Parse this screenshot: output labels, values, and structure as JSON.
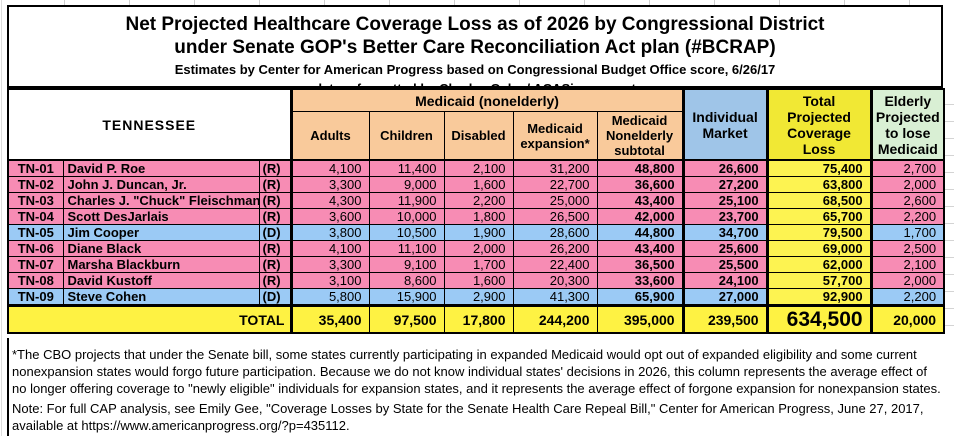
{
  "title": {
    "line1": "Net Projected Healthcare Coverage Loss as of 2026 by Congressional District",
    "line2": "under Senate GOP's Better Care Reconciliation Act plan (#BCRAP)",
    "line3": "Estimates by Center for American Progress based on Congressional Budget Office score, 6/26/17",
    "line4": "data reformatted by Charles Gaba / ACASignups.net"
  },
  "table": {
    "state": "TENNESSEE",
    "group_header": "Medicaid (nonelderly)",
    "columns": [
      "Adults",
      "Children",
      "Disabled",
      "Medicaid expansion*",
      "Medicaid Nonelderly subtotal",
      "Individual Market",
      "Total Projected Coverage Loss",
      "Elderly Projected to lose Medicaid"
    ],
    "rows": [
      {
        "district": "TN-01",
        "name": "David P. Roe",
        "party": "(R)",
        "values": [
          "4,100",
          "11,400",
          "2,100",
          "31,200",
          "48,800",
          "26,600",
          "75,400",
          "2,700"
        ]
      },
      {
        "district": "TN-02",
        "name": "John J. Duncan, Jr.",
        "party": "(R)",
        "values": [
          "3,300",
          "9,000",
          "1,600",
          "22,700",
          "36,600",
          "27,200",
          "63,800",
          "2,000"
        ]
      },
      {
        "district": "TN-03",
        "name": "Charles J. \"Chuck\" Fleischmann",
        "party": "(R)",
        "values": [
          "4,300",
          "11,900",
          "2,200",
          "25,000",
          "43,400",
          "25,100",
          "68,500",
          "2,600"
        ]
      },
      {
        "district": "TN-04",
        "name": "Scott DesJarlais",
        "party": "(R)",
        "values": [
          "3,600",
          "10,000",
          "1,800",
          "26,500",
          "42,000",
          "23,700",
          "65,700",
          "2,200"
        ]
      },
      {
        "district": "TN-05",
        "name": "Jim Cooper",
        "party": "(D)",
        "values": [
          "3,800",
          "10,500",
          "1,900",
          "28,600",
          "44,800",
          "34,700",
          "79,500",
          "1,700"
        ]
      },
      {
        "district": "TN-06",
        "name": "Diane Black",
        "party": "(R)",
        "values": [
          "4,100",
          "11,100",
          "2,000",
          "26,200",
          "43,400",
          "25,600",
          "69,000",
          "2,500"
        ]
      },
      {
        "district": "TN-07",
        "name": "Marsha Blackburn",
        "party": "(R)",
        "values": [
          "3,300",
          "9,100",
          "1,700",
          "22,400",
          "36,500",
          "25,500",
          "62,000",
          "2,100"
        ]
      },
      {
        "district": "TN-08",
        "name": "David Kustoff",
        "party": "(R)",
        "values": [
          "3,100",
          "8,600",
          "1,600",
          "20,300",
          "33,600",
          "24,100",
          "57,700",
          "2,000"
        ]
      },
      {
        "district": "TN-09",
        "name": "Steve Cohen",
        "party": "(D)",
        "values": [
          "5,800",
          "15,900",
          "2,900",
          "41,300",
          "65,900",
          "27,000",
          "92,900",
          "2,200"
        ]
      }
    ],
    "total": {
      "label": "TOTAL",
      "values": [
        "35,400",
        "97,500",
        "17,800",
        "244,200",
        "395,000",
        "239,500",
        "634,500",
        "20,000"
      ]
    }
  },
  "footnote": "*The CBO projects that under the Senate bill, some states currently participating in expanded Medicaid would opt out of expanded eligibility and some current nonexpansion states would forgo future participation. Because we do not know individual states' decisions in 2026, this column represents the average effect of no longer offering coverage to \"newly eligible\" individuals for expansion states, and it represents the average effect of forgone expansion for nonexpansion states.",
  "note": "Note: For full CAP analysis, see Emily Gee, \"Coverage Losses by State for the Senate Health Care Repeal Bill,\" Center for American Progress, June 27, 2017, available at https://www.americanprogress.org/?p=435112.",
  "colors": {
    "medicaid_header_orange": "#F9CA9B",
    "individual_market_blue": "#9FC5E8",
    "total_header_yellow": "#F1E834",
    "total_cell_yellow": "#FDF351",
    "total_row_yellow": "#FEF243",
    "elderly_header_green": "#D9EFD4",
    "republican_row_pink": "#F78CB4",
    "democrat_row_blue": "#9BCAF5"
  }
}
